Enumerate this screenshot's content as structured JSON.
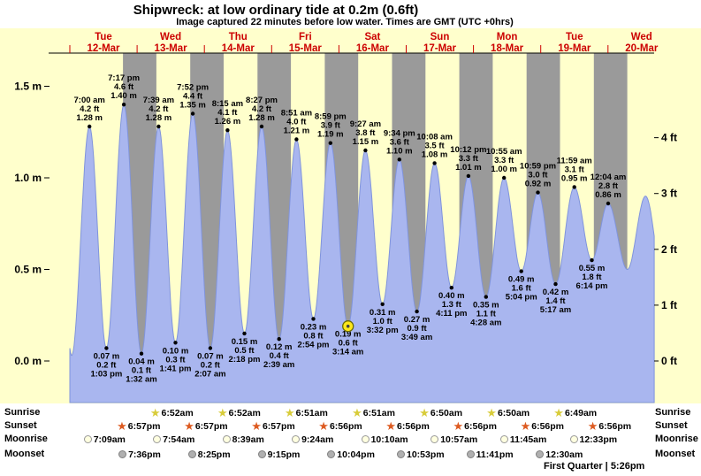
{
  "chart_data": {
    "type": "area",
    "title": "Shipwreck: at low  ordinary tide at 0.2m (0.6ft)",
    "subtitle": "Image captured 22 minutes before low water. Times are GMT (UTC +0hrs)",
    "x_days": [
      {
        "dow": "Tue",
        "date": "12-Mar"
      },
      {
        "dow": "Wed",
        "date": "13-Mar"
      },
      {
        "dow": "Thu",
        "date": "14-Mar"
      },
      {
        "dow": "Fri",
        "date": "15-Mar"
      },
      {
        "dow": "Sat",
        "date": "16-Mar"
      },
      {
        "dow": "Sun",
        "date": "17-Mar"
      },
      {
        "dow": "Mon",
        "date": "18-Mar"
      },
      {
        "dow": "Tue",
        "date": "19-Mar"
      },
      {
        "dow": "Wed",
        "date": "20-Mar"
      }
    ],
    "y_left_ticks": [
      {
        "v": 0.0,
        "label": "0.0 m"
      },
      {
        "v": 0.5,
        "label": "0.5 m"
      },
      {
        "v": 1.0,
        "label": "1.0 m"
      },
      {
        "v": 1.5,
        "label": "1.5 m"
      }
    ],
    "y_right_ticks": [
      {
        "v": 0,
        "label": "0 ft"
      },
      {
        "v": 1,
        "label": "1 ft"
      },
      {
        "v": 2,
        "label": "2 ft"
      },
      {
        "v": 3,
        "label": "3 ft"
      },
      {
        "v": 4,
        "label": "4 ft"
      }
    ],
    "ylim_m": [
      -0.23,
      1.68
    ],
    "t_range_hours": [
      0,
      208.5
    ],
    "night": {
      "sunset_hour": 18.95,
      "sunrise_hour": 6.87,
      "nights": 8
    },
    "lead_extreme": {
      "kind": "high",
      "t": -5.3,
      "m": 1.42
    },
    "trail_extremes": [
      {
        "kind": "low",
        "t": 198.9,
        "m": 0.5
      },
      {
        "kind": "high",
        "t": 205.4,
        "m": 0.9
      },
      {
        "kind": "low",
        "t": 211.8,
        "m": 0.44
      }
    ],
    "extremes": [
      {
        "kind": "low",
        "t": 0.64,
        "m": 0.03,
        "labeled": false
      },
      {
        "kind": "high",
        "t": 7.0,
        "m": 1.28,
        "ft": 4.2,
        "time": "7:00 am",
        "labeled": true
      },
      {
        "kind": "low",
        "t": 13.05,
        "m": 0.07,
        "ft": 0.2,
        "time": "1:03 pm",
        "labeled": true
      },
      {
        "kind": "high",
        "t": 19.283,
        "m": 1.4,
        "ft": 4.6,
        "time": "7:17 pm",
        "labeled": true
      },
      {
        "kind": "low",
        "t": 25.533,
        "m": 0.04,
        "ft": 0.1,
        "time": "1:32 am",
        "labeled": true
      },
      {
        "kind": "high",
        "t": 31.65,
        "m": 1.28,
        "ft": 4.2,
        "time": "7:39 am",
        "labeled": true
      },
      {
        "kind": "low",
        "t": 37.683,
        "m": 0.1,
        "ft": 0.3,
        "time": "1:41 pm",
        "labeled": true
      },
      {
        "kind": "high",
        "t": 43.867,
        "m": 1.35,
        "ft": 4.4,
        "time": "7:52 pm",
        "labeled": true
      },
      {
        "kind": "low",
        "t": 50.117,
        "m": 0.07,
        "ft": 0.2,
        "time": "2:07 am",
        "labeled": true
      },
      {
        "kind": "high",
        "t": 56.25,
        "m": 1.26,
        "ft": 4.1,
        "time": "8:15 am",
        "labeled": true
      },
      {
        "kind": "low",
        "t": 62.3,
        "m": 0.15,
        "ft": 0.5,
        "time": "2:18 pm",
        "labeled": true
      },
      {
        "kind": "high",
        "t": 68.45,
        "m": 1.28,
        "ft": 4.2,
        "time": "8:27 pm",
        "labeled": true
      },
      {
        "kind": "low",
        "t": 74.65,
        "m": 0.12,
        "ft": 0.4,
        "time": "2:39 am",
        "labeled": true
      },
      {
        "kind": "high",
        "t": 80.85,
        "m": 1.21,
        "ft": 4.0,
        "time": "8:51 am",
        "labeled": true
      },
      {
        "kind": "low",
        "t": 86.9,
        "m": 0.23,
        "ft": 0.8,
        "time": "2:54 pm",
        "labeled": true
      },
      {
        "kind": "high",
        "t": 92.983,
        "m": 1.19,
        "ft": 3.9,
        "time": "8:59 pm",
        "labeled": true
      },
      {
        "kind": "low",
        "t": 99.233,
        "m": 0.19,
        "ft": 0.6,
        "time": "3:14 am",
        "labeled": true
      },
      {
        "kind": "high",
        "t": 105.45,
        "m": 1.15,
        "ft": 3.8,
        "time": "9:27 am",
        "labeled": true
      },
      {
        "kind": "low",
        "t": 111.533,
        "m": 0.31,
        "ft": 1.0,
        "time": "3:32 pm",
        "labeled": true
      },
      {
        "kind": "high",
        "t": 117.567,
        "m": 1.1,
        "ft": 3.6,
        "time": "9:34 pm",
        "labeled": true
      },
      {
        "kind": "low",
        "t": 123.817,
        "m": 0.27,
        "ft": 0.9,
        "time": "3:49 am",
        "labeled": true
      },
      {
        "kind": "high",
        "t": 130.133,
        "m": 1.08,
        "ft": 3.5,
        "time": "10:08 am",
        "labeled": true
      },
      {
        "kind": "low",
        "t": 136.183,
        "m": 0.4,
        "ft": 1.3,
        "time": "4:11 pm",
        "labeled": true
      },
      {
        "kind": "high",
        "t": 142.2,
        "m": 1.01,
        "ft": 3.3,
        "time": "10:12 pm",
        "labeled": true
      },
      {
        "kind": "low",
        "t": 148.467,
        "m": 0.35,
        "ft": 1.1,
        "time": "4:28 am",
        "labeled": true
      },
      {
        "kind": "high",
        "t": 154.917,
        "m": 1.0,
        "ft": 3.3,
        "time": "10:55 am",
        "labeled": true
      },
      {
        "kind": "low",
        "t": 161.067,
        "m": 0.49,
        "ft": 1.6,
        "time": "5:04 pm",
        "labeled": true
      },
      {
        "kind": "high",
        "t": 166.983,
        "m": 0.92,
        "ft": 3.0,
        "time": "10:59 pm",
        "labeled": true
      },
      {
        "kind": "low",
        "t": 173.283,
        "m": 0.42,
        "ft": 1.4,
        "time": "5:17 am",
        "labeled": true
      },
      {
        "kind": "high",
        "t": 179.983,
        "m": 0.95,
        "ft": 3.1,
        "time": "11:59 am",
        "labeled": true
      },
      {
        "kind": "low",
        "t": 186.233,
        "m": 0.55,
        "ft": 1.8,
        "time": "6:14 pm",
        "labeled": true
      },
      {
        "kind": "high",
        "t": 192.067,
        "m": 0.86,
        "ft": 2.8,
        "time": "12:04 am",
        "labeled": true
      }
    ],
    "current_marker": {
      "t": 99.233,
      "m": 0.19,
      "time": "3:14 am"
    },
    "colors": {
      "plot_bg": "#ffffcc",
      "night_band": "#9a9a9a",
      "tide_fill": "#a9b6ef",
      "tide_stroke": "#8094dc",
      "day_label": "#cc0000",
      "axis_text": "#000000",
      "marker_fill": "#ffe81a",
      "marker_stroke": "#6b6b00"
    }
  },
  "astro": {
    "rows": [
      {
        "key": "sunrise",
        "label": "Sunrise",
        "icon": "star",
        "color": "#d8cc3a",
        "events": [
          {
            "time": "6:52am",
            "t": 30.867
          },
          {
            "time": "6:52am",
            "t": 54.867
          },
          {
            "time": "6:51am",
            "t": 78.85
          },
          {
            "time": "6:51am",
            "t": 102.85
          },
          {
            "time": "6:50am",
            "t": 126.833
          },
          {
            "time": "6:50am",
            "t": 150.833
          },
          {
            "time": "6:49am",
            "t": 174.817
          }
        ]
      },
      {
        "key": "sunset",
        "label": "Sunset",
        "icon": "star",
        "color": "#dd5b21",
        "events": [
          {
            "time": "6:57pm",
            "t": 18.95
          },
          {
            "time": "6:57pm",
            "t": 42.95
          },
          {
            "time": "6:57pm",
            "t": 66.95
          },
          {
            "time": "6:56pm",
            "t": 90.933
          },
          {
            "time": "6:56pm",
            "t": 114.933
          },
          {
            "time": "6:56pm",
            "t": 138.933
          },
          {
            "time": "6:56pm",
            "t": 162.933
          },
          {
            "time": "6:56pm",
            "t": 186.933
          }
        ]
      },
      {
        "key": "moonrise",
        "label": "Moonrise",
        "icon": "circle",
        "fill": "#ffffe0",
        "border": "#999999",
        "events": [
          {
            "time": "7:09am",
            "t": 7.15
          },
          {
            "time": "7:54am",
            "t": 31.9
          },
          {
            "time": "8:39am",
            "t": 56.65
          },
          {
            "time": "9:24am",
            "t": 81.4
          },
          {
            "time": "10:10am",
            "t": 106.167
          },
          {
            "time": "10:57am",
            "t": 130.95
          },
          {
            "time": "11:45am",
            "t": 155.75
          },
          {
            "time": "12:33pm",
            "t": 180.55
          }
        ]
      },
      {
        "key": "moonset",
        "label": "Moonset",
        "icon": "circle",
        "fill": "#b0b0b0",
        "border": "#808080",
        "events": [
          {
            "time": "7:36pm",
            "t": 19.6
          },
          {
            "time": "8:25pm",
            "t": 44.417
          },
          {
            "time": "9:15pm",
            "t": 69.25
          },
          {
            "time": "10:04pm",
            "t": 94.067
          },
          {
            "time": "10:53pm",
            "t": 118.883
          },
          {
            "time": "11:41pm",
            "t": 143.683
          },
          {
            "time": "12:30am",
            "t": 168.5
          }
        ]
      }
    ],
    "footer": "First Quarter | 5:26pm"
  }
}
